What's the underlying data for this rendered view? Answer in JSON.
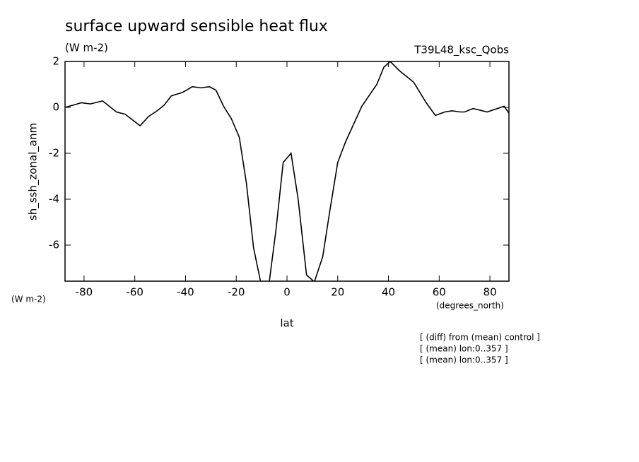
{
  "chart_data": {
    "type": "line",
    "title": "surface upward sensible heat flux",
    "subtitle": "(W m-2)",
    "experiment": "T39L48_ksc_Qobs",
    "y_label": "sh_ssh_zonal_anm",
    "y_unit": "(W m-2)",
    "x_unit": "(degrees_north)",
    "x_label": "lat",
    "notes": [
      "[ (diff) from (mean) control ]",
      "[ (mean) lon:0..357 ]",
      "[ (mean) lon:0..357 ]"
    ],
    "x": [
      -87.5,
      -84.2,
      -81.1,
      -77.5,
      -72.7,
      -67.2,
      -63.8,
      -57.9,
      -54.6,
      -51.2,
      -48.4,
      -45.6,
      -41.2,
      -37.3,
      -33.9,
      -30.6,
      -28.0,
      -25.0,
      -21.9,
      -18.8,
      -16.0,
      -13.2,
      -10.4,
      -7.1,
      -4.3,
      -1.5,
      1.6,
      4.4,
      7.7,
      10.8,
      14.1,
      16.9,
      20.0,
      23.1,
      26.4,
      29.5,
      32.3,
      35.4,
      38.2,
      40.7,
      44.3,
      49.9,
      54.9,
      58.5,
      62.2,
      65.0,
      68.3,
      70.0,
      73.4,
      78.9,
      85.6,
      87.5
    ],
    "series": [
      {
        "color": "#000000",
        "values": [
          0.0,
          0.1,
          0.2,
          0.15,
          0.28,
          -0.2,
          -0.3,
          -0.8,
          -0.4,
          -0.15,
          0.1,
          0.5,
          0.65,
          0.9,
          0.85,
          0.9,
          0.75,
          0.05,
          -0.5,
          -1.3,
          -3.3,
          -6.1,
          -7.6,
          -7.7,
          -5.3,
          -2.4,
          -2.0,
          -4.0,
          -7.3,
          -7.6,
          -6.5,
          -4.5,
          -2.4,
          -1.5,
          -0.7,
          0.05,
          0.5,
          1.0,
          1.75,
          2.0,
          1.6,
          1.1,
          0.2,
          -0.35,
          -0.2,
          -0.15,
          -0.2,
          -0.2,
          -0.05,
          -0.2,
          0.05,
          -0.25
        ]
      }
    ],
    "xlim": [
      -87.5,
      87.5
    ],
    "ylim": [
      -7.57,
      2
    ],
    "xticks": [
      -80,
      -60,
      -40,
      -20,
      0,
      20,
      40,
      60,
      80
    ],
    "yticks": [
      -6,
      -4,
      -2,
      0,
      2
    ]
  }
}
